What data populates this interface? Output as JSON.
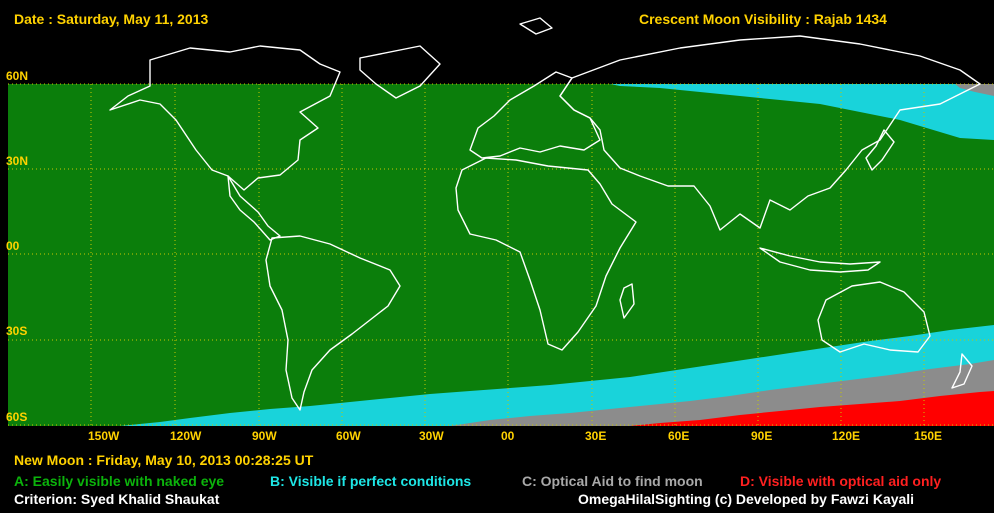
{
  "header": {
    "date": "Date : Saturday, May 11, 2013",
    "title": "Crescent Moon Visibility : Rajab  1434"
  },
  "lat_labels": [
    "60N",
    "30N",
    "00",
    "30S",
    "60S"
  ],
  "lon_labels": [
    "150W",
    "120W",
    "90W",
    "60W",
    "30W",
    "00",
    "30E",
    "60E",
    "90E",
    "120E",
    "150E"
  ],
  "footer": {
    "new_moon": "New Moon : Friday, May 10, 2013  00:28:25  UT",
    "legend": {
      "a": "A: Easily visible with naked eye",
      "b": "B: Visible if perfect conditions",
      "c": "C: Optical Aid to find moon",
      "d": "D: Visible with optical aid only"
    },
    "criterion": "Criterion: Syed Khalid Shaukat",
    "credit": "OmegaHilalSighting  (c)  Developed by Fawzi Kayali"
  },
  "colors": {
    "zone_a": "#0b7e0b",
    "zone_b": "#19d3da",
    "zone_c": "#8c8c8c",
    "zone_d": "#ff0000",
    "grid": "#c8c800",
    "coast": "#ffffff",
    "labels": "#ffd200"
  }
}
